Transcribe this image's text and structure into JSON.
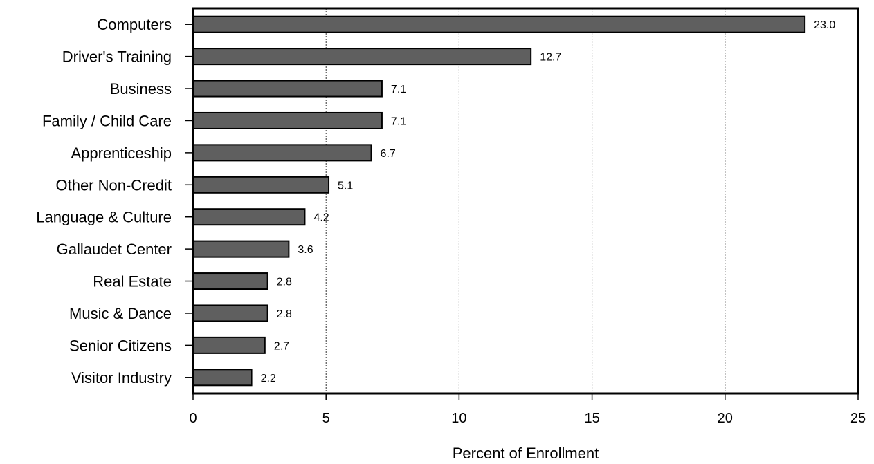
{
  "chart_data": {
    "type": "bar",
    "orientation": "horizontal",
    "categories": [
      "Computers",
      "Driver's Training",
      "Business",
      "Family / Child Care",
      "Apprenticeship",
      "Other Non-Credit",
      "Language & Culture",
      "Gallaudet Center",
      "Real Estate",
      "Music & Dance",
      "Senior Citizens",
      "Visitor Industry"
    ],
    "values": [
      23.0,
      12.7,
      7.1,
      7.1,
      6.7,
      5.1,
      4.2,
      3.6,
      2.8,
      2.8,
      2.7,
      2.2
    ],
    "value_labels": [
      "23.0",
      "12.7",
      "7.1",
      "7.1",
      "6.7",
      "5.1",
      "4.2",
      "3.6",
      "2.8",
      "2.8",
      "2.7",
      "2.2"
    ],
    "xlabel": "Percent of Enrollment",
    "xlim": [
      0,
      25
    ],
    "xticks": [
      "0",
      "5",
      "10",
      "15",
      "20",
      "25"
    ],
    "grid": "vertical dashed",
    "bar_color": "#5f5f5f"
  }
}
